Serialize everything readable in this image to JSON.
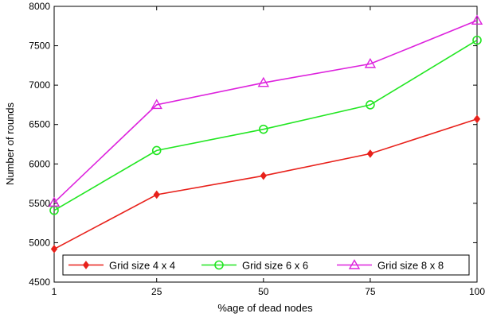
{
  "chart_data": {
    "type": "line",
    "title": "",
    "xlabel": "%age of dead nodes",
    "ylabel": "Number of rounds",
    "x": [
      1,
      25,
      50,
      75,
      100
    ],
    "x_ticks": [
      "1",
      "25",
      "50",
      "75",
      "100"
    ],
    "y_ticks": [
      "4500",
      "5000",
      "5500",
      "6000",
      "6500",
      "7000",
      "7500",
      "8000"
    ],
    "xlim": [
      1,
      100
    ],
    "ylim": [
      4500,
      8000
    ],
    "grid": false,
    "legend_placement": "bottom",
    "series": [
      {
        "name": "Grid size 4 x 4",
        "color": "#e8211b",
        "marker": "diamond",
        "values": [
          4920,
          5610,
          5850,
          6130,
          6570
        ]
      },
      {
        "name": "Grid size 6 x 6",
        "color": "#22e622",
        "marker": "circle",
        "values": [
          5410,
          6170,
          6440,
          6750,
          7570
        ]
      },
      {
        "name": "Grid size 8 x 8",
        "color": "#dd22dd",
        "marker": "triangle",
        "values": [
          5510,
          6750,
          7030,
          7270,
          7820
        ]
      }
    ]
  }
}
